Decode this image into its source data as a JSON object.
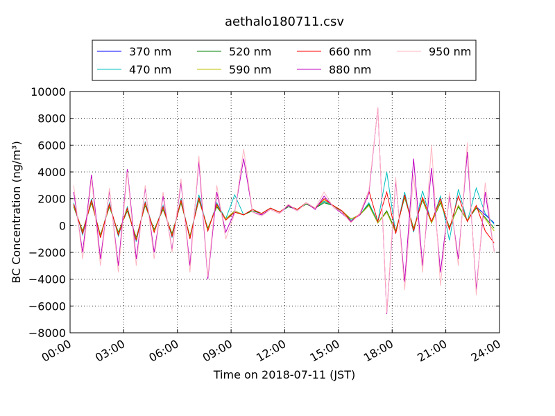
{
  "chart_data": {
    "type": "line",
    "title": "aethalo180711.csv",
    "xlabel": "Time on 2018-07-11 (JST)",
    "ylabel": "BC Concentration (ng/m³)",
    "x": [
      0.2,
      0.7,
      1.2,
      1.7,
      2.2,
      2.7,
      3.2,
      3.7,
      4.2,
      4.7,
      5.2,
      5.7,
      6.2,
      6.7,
      7.2,
      7.7,
      8.2,
      8.7,
      9.2,
      9.7,
      10.2,
      10.7,
      11.2,
      11.7,
      12.2,
      12.7,
      13.2,
      13.7,
      14.2,
      14.7,
      15.2,
      15.7,
      16.2,
      16.7,
      17.2,
      17.7,
      18.2,
      18.7,
      19.2,
      19.7,
      20.2,
      20.7,
      21.2,
      21.7,
      22.2,
      22.7,
      23.2,
      23.7
    ],
    "series": [
      {
        "name": "370 nm",
        "color": "#0000ff",
        "values": [
          1500,
          -500,
          1800,
          -800,
          1500,
          -600,
          1200,
          -1000,
          1600,
          -400,
          1300,
          -700,
          1800,
          -900,
          2000,
          -300,
          1500,
          500,
          1100,
          800,
          1200,
          900,
          1300,
          1000,
          1500,
          1200,
          1700,
          1300,
          1800,
          1500,
          1100,
          500,
          800,
          1500,
          200,
          1000,
          -500,
          2200,
          -300,
          2000,
          200,
          1800,
          -200,
          1500,
          400,
          1400,
          800,
          200
        ]
      },
      {
        "name": "470 nm",
        "color": "#00bfbf",
        "values": [
          1700,
          -700,
          2000,
          -900,
          1700,
          -800,
          1400,
          -1200,
          1800,
          -500,
          1500,
          -900,
          2000,
          -1000,
          2300,
          -400,
          1700,
          500,
          2300,
          800,
          1200,
          900,
          1300,
          1000,
          1500,
          1200,
          1700,
          1300,
          1800,
          1500,
          1100,
          400,
          800,
          1700,
          300,
          4000,
          -600,
          2500,
          -500,
          2600,
          200,
          2200,
          -1100,
          2700,
          300,
          2800,
          900,
          100
        ]
      },
      {
        "name": "520 nm",
        "color": "#008000",
        "values": [
          1400,
          -400,
          1700,
          -700,
          1400,
          -500,
          1100,
          -900,
          1500,
          -300,
          1200,
          -600,
          1700,
          -800,
          1900,
          -200,
          1400,
          500,
          1000,
          800,
          1100,
          900,
          1300,
          1000,
          1400,
          1200,
          1600,
          1300,
          1700,
          1500,
          1000,
          500,
          800,
          1600,
          200,
          1100,
          -400,
          2100,
          -200,
          1900,
          200,
          1700,
          -100,
          1400,
          400,
          1300,
          600,
          -200
        ]
      },
      {
        "name": "590 nm",
        "color": "#bfbf00",
        "values": [
          1500,
          -500,
          1800,
          -800,
          1500,
          -600,
          1200,
          -1000,
          1600,
          -400,
          1300,
          -700,
          1800,
          -900,
          2000,
          -300,
          1500,
          500,
          1100,
          800,
          1200,
          900,
          1300,
          1000,
          1500,
          1200,
          1700,
          1300,
          1900,
          1500,
          1100,
          500,
          800,
          1500,
          200,
          1000,
          -500,
          2200,
          -300,
          2000,
          200,
          1800,
          -200,
          1500,
          400,
          1400,
          500,
          -400
        ]
      },
      {
        "name": "660 nm",
        "color": "#ff0000",
        "values": [
          1600,
          -600,
          1900,
          -900,
          1600,
          -700,
          1300,
          -1100,
          1700,
          -500,
          1400,
          -800,
          1900,
          -1000,
          2100,
          -400,
          1600,
          400,
          1000,
          800,
          1200,
          900,
          1300,
          1000,
          1500,
          1200,
          1700,
          1300,
          2000,
          1500,
          1100,
          300,
          900,
          2600,
          300,
          2500,
          -600,
          2300,
          -400,
          2100,
          300,
          2000,
          -300,
          2200,
          300,
          1500,
          -400,
          -1300
        ]
      },
      {
        "name": "880 nm",
        "color": "#bf00bf",
        "values": [
          2500,
          -2000,
          3800,
          -2500,
          2600,
          -3000,
          4200,
          -2500,
          2800,
          -2000,
          2200,
          -1800,
          3200,
          -3000,
          4800,
          -4000,
          2500,
          -500,
          1000,
          5000,
          1000,
          800,
          1200,
          900,
          1500,
          1100,
          1700,
          1200,
          2200,
          1400,
          900,
          300,
          800,
          2400,
          8800,
          -6600,
          3400,
          -4200,
          5000,
          -3000,
          4300,
          -3500,
          2200,
          -2500,
          5500,
          -4800,
          2500,
          -1900
        ]
      },
      {
        "name": "950 nm",
        "color": "#ffb6c1",
        "values": [
          3000,
          -2500,
          3500,
          -3000,
          2800,
          -3500,
          4000,
          -3000,
          3000,
          -2500,
          2500,
          -2000,
          3500,
          -3500,
          5200,
          -3800,
          3000,
          -1000,
          900,
          5700,
          1000,
          700,
          1200,
          900,
          1600,
          1100,
          1700,
          1300,
          2500,
          1400,
          1000,
          200,
          900,
          2600,
          8800,
          -6500,
          3600,
          -4800,
          3800,
          -3500,
          6000,
          -4500,
          2500,
          -3000,
          6200,
          -5200,
          3200,
          -2000
        ]
      }
    ],
    "xlim": [
      0,
      24
    ],
    "xticks": [
      {
        "value": 0,
        "label": "00:00"
      },
      {
        "value": 3,
        "label": "03:00"
      },
      {
        "value": 6,
        "label": "06:00"
      },
      {
        "value": 9,
        "label": "09:00"
      },
      {
        "value": 12,
        "label": "12:00"
      },
      {
        "value": 15,
        "label": "15:00"
      },
      {
        "value": 18,
        "label": "18:00"
      },
      {
        "value": 21,
        "label": "21:00"
      },
      {
        "value": 24,
        "label": "24:00"
      }
    ],
    "ylim": [
      -8000,
      10000
    ],
    "yticks": [
      {
        "value": -8000,
        "label": "−8000"
      },
      {
        "value": -6000,
        "label": "−6000"
      },
      {
        "value": -4000,
        "label": "−4000"
      },
      {
        "value": -2000,
        "label": "−2000"
      },
      0,
      2000,
      4000,
      6000,
      8000,
      10000
    ],
    "grid": true,
    "legend": "upper center"
  }
}
